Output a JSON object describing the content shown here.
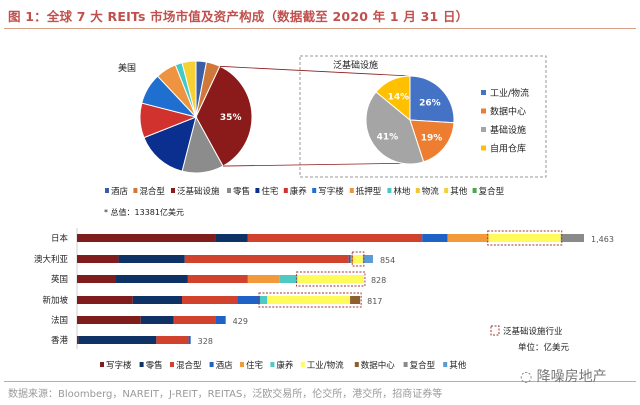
{
  "title": "图 1：全球 7 大 REITs 市场市值及资产构成（数据截至 2020 年 1 月 31 日）",
  "source": "数据来源：Bloomberg，NAREIT，J-REIT，REITAS，泛欧交易所，伦交所，港交所，招商证券等",
  "watermark": "降噪房地产",
  "total_note": "* 总值：13381亿美元",
  "chart_data": [
    {
      "type": "pie",
      "title": "美国",
      "slices": [
        {
          "name": "酒店",
          "value": 3,
          "color": "#3a5da8"
        },
        {
          "name": "混合型",
          "value": 4,
          "color": "#d0773a"
        },
        {
          "name": "泛基础设施",
          "value": 35,
          "color": "#8b1a1a",
          "label": "35%"
        },
        {
          "name": "零售",
          "value": 12,
          "color": "#8c8c8c"
        },
        {
          "name": "住宅",
          "value": 15,
          "color": "#0b2f8f"
        },
        {
          "name": "康养",
          "value": 10,
          "color": "#d2322d"
        },
        {
          "name": "写字楼",
          "value": 9,
          "color": "#1f6fd1"
        },
        {
          "name": "抵押型",
          "value": 6,
          "color": "#ee9440"
        },
        {
          "name": "林地",
          "value": 2,
          "color": "#45c8c8"
        },
        {
          "name": "物流",
          "value": 0,
          "color": "#f7c431"
        },
        {
          "name": "其他",
          "value": 4,
          "color": "#f7d035"
        },
        {
          "name": "复合型",
          "value": 0,
          "color": "#4ca64c"
        }
      ]
    },
    {
      "type": "pie",
      "title": "泛基础设施",
      "slices": [
        {
          "name": "工业/物流",
          "value": 26,
          "color": "#4472c4",
          "label": "26%"
        },
        {
          "name": "数据中心",
          "value": 19,
          "color": "#ed7d31",
          "label": "19%"
        },
        {
          "name": "基础设施",
          "value": 41,
          "color": "#a5a5a5",
          "label": "41%"
        },
        {
          "name": "自用仓库",
          "value": 14,
          "color": "#ffc000",
          "label": "14%"
        }
      ]
    },
    {
      "type": "bar",
      "orientation": "horizontal",
      "stacked": true,
      "unit": "单位：亿美元",
      "highlight_legend": "泛基础设施行业",
      "series_names": [
        "写字楼",
        "零售",
        "混合型",
        "酒店",
        "住宅",
        "康养",
        "工业/物流",
        "数据中心",
        "复合型",
        "其他"
      ],
      "series_colors": [
        "#7f1d1d",
        "#0f3266",
        "#d0422d",
        "#1f62c6",
        "#f29a3a",
        "#4fc9c4",
        "#fffb5a",
        "#8f5e2d",
        "#8a8a8a",
        "#5b9bd5"
      ],
      "categories": [
        {
          "name": "日本",
          "total": 1463,
          "total_label": "1,463",
          "values": [
            401,
            92,
            503,
            73,
            119,
            0,
            208,
            0,
            67,
            0
          ],
          "highlight": [
            6,
            6
          ]
        },
        {
          "name": "澳大利亚",
          "total": 854,
          "total_label": "854",
          "values": [
            120,
            191,
            473,
            6,
            7,
            0,
            28,
            0,
            0,
            29
          ],
          "highlight": [
            6,
            6
          ]
        },
        {
          "name": "英国",
          "total": 828,
          "total_label": "828",
          "values": [
            111,
            209,
            173,
            0,
            92,
            51,
            192,
            0,
            0,
            0
          ],
          "highlight": [
            6,
            6
          ]
        },
        {
          "name": "新加坡",
          "total": 817,
          "total_label": "817",
          "values": [
            161,
            142,
            159,
            66,
            0,
            21,
            239,
            29,
            0,
            0
          ],
          "highlight": [
            5,
            7
          ]
        },
        {
          "name": "法国",
          "total": 429,
          "total_label": "429",
          "values": [
            184,
            95,
            122,
            28,
            0,
            0,
            0,
            0,
            0,
            0
          ]
        },
        {
          "name": "香港",
          "total": 328,
          "total_label": "328",
          "values": [
            4,
            225,
            93,
            6,
            0,
            0,
            0,
            0,
            0,
            0
          ]
        }
      ]
    }
  ]
}
